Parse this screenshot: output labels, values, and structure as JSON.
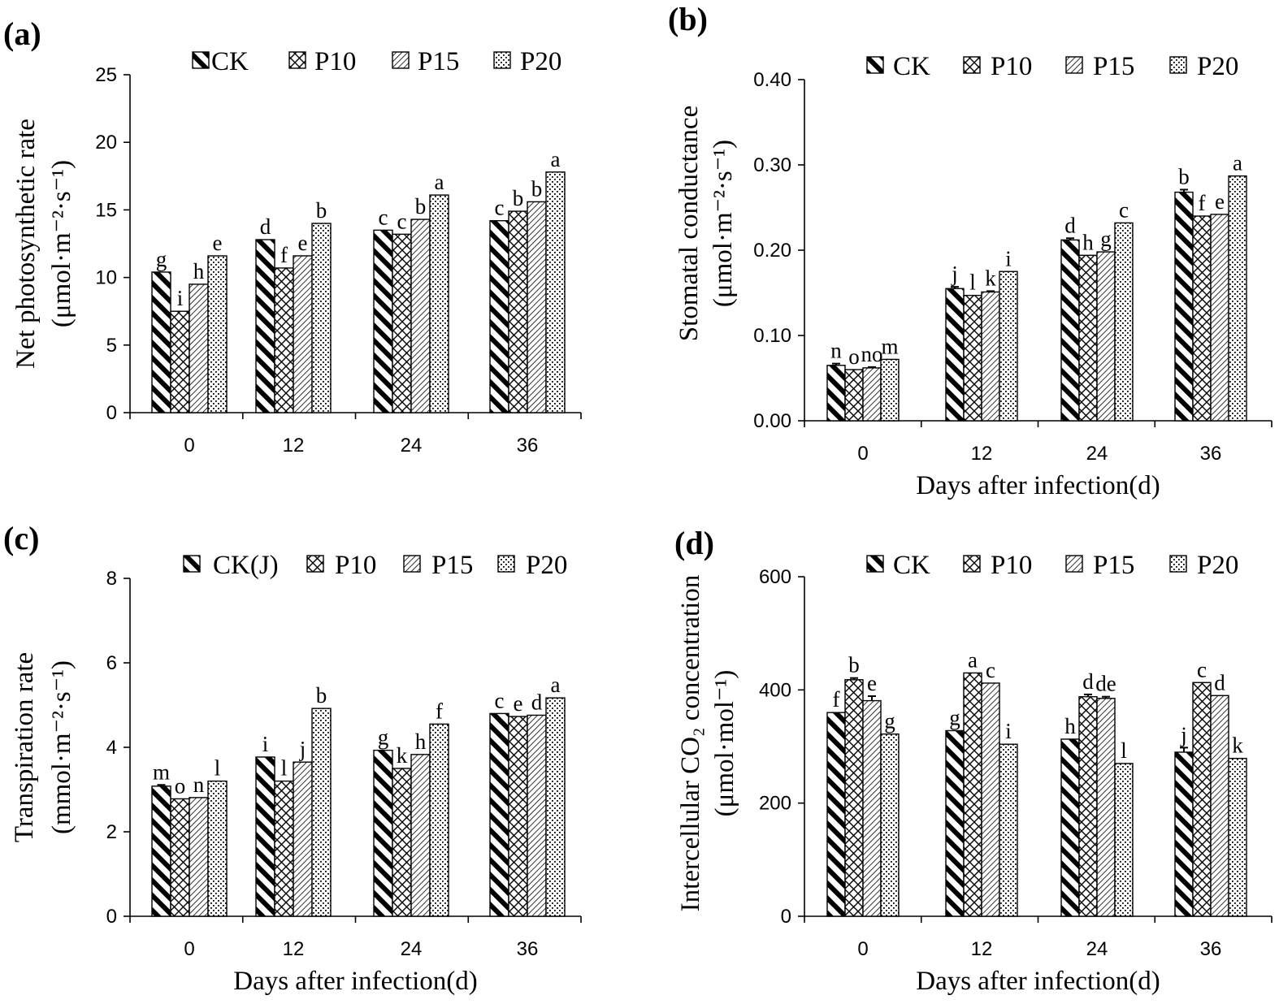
{
  "figure": {
    "panels": [
      {
        "id": "a",
        "label": "(a)"
      },
      {
        "id": "b",
        "label": "(b)"
      },
      {
        "id": "c",
        "label": "(c)"
      },
      {
        "id": "d",
        "label": "(d)"
      }
    ]
  },
  "colors": {
    "ink": "#000000",
    "background": "#ffffff",
    "bar_fill": "#ffffff"
  },
  "chart_data": [
    {
      "id": "a",
      "type": "bar",
      "title": "",
      "panel_label": "(a)",
      "categories": [
        "0",
        "12",
        "24",
        "36"
      ],
      "ylabel_line1": "Net photosynthetic rate",
      "ylabel_line2": "(μmol·m⁻²·s⁻¹)",
      "xlabel": "",
      "ylim": [
        0,
        25
      ],
      "yticks": [
        0,
        5,
        10,
        15,
        20,
        25
      ],
      "ytick_labels": [
        "0",
        "5",
        "10",
        "15",
        "20",
        "25"
      ],
      "legend": [
        "CK",
        "P10",
        "P15",
        "P20"
      ],
      "legend_position": "top",
      "grid": false,
      "series": [
        {
          "name": "CK",
          "pattern": "ck",
          "values": [
            10.4,
            12.8,
            13.5,
            14.2
          ],
          "errors": [
            0,
            0,
            0,
            0
          ],
          "letters": [
            "g",
            "d",
            "c",
            "c"
          ]
        },
        {
          "name": "P10",
          "pattern": "p10",
          "values": [
            7.5,
            10.7,
            13.2,
            14.9
          ],
          "errors": [
            0,
            0,
            0,
            0
          ],
          "letters": [
            "i",
            "f",
            "c",
            "b"
          ]
        },
        {
          "name": "P15",
          "pattern": "p15",
          "values": [
            9.5,
            11.6,
            14.3,
            15.6
          ],
          "errors": [
            0,
            0,
            0,
            0
          ],
          "letters": [
            "h",
            "e",
            "b",
            "b"
          ]
        },
        {
          "name": "P20",
          "pattern": "p20",
          "values": [
            11.6,
            14.0,
            16.1,
            17.8
          ],
          "errors": [
            0,
            0,
            0,
            0
          ],
          "letters": [
            "e",
            "b",
            "a",
            "a"
          ]
        }
      ]
    },
    {
      "id": "b",
      "type": "bar",
      "title": "",
      "panel_label": "(b)",
      "categories": [
        "0",
        "12",
        "24",
        "36"
      ],
      "ylabel_line1": "Stomatal conductance",
      "ylabel_line2": "(μmol·m⁻²·s⁻¹)",
      "xlabel": "Days after infection(d)",
      "ylim": [
        0,
        0.4
      ],
      "yticks": [
        0,
        0.1,
        0.2,
        0.3,
        0.4
      ],
      "ytick_labels": [
        "0.00",
        "0.10",
        "0.20",
        "0.30",
        "0.40"
      ],
      "legend": [
        "CK",
        "P10",
        "P15",
        "P20"
      ],
      "legend_position": "top",
      "grid": false,
      "series": [
        {
          "name": "CK",
          "pattern": "ck",
          "values": [
            0.065,
            0.155,
            0.212,
            0.268
          ],
          "errors": [
            0.002,
            0.002,
            0.002,
            0.003
          ],
          "letters": [
            "n",
            "j",
            "d",
            "b"
          ]
        },
        {
          "name": "P10",
          "pattern": "p10",
          "values": [
            0.06,
            0.147,
            0.194,
            0.24
          ],
          "errors": [
            0,
            0,
            0,
            0
          ],
          "letters": [
            "o",
            "l",
            "h",
            "f"
          ]
        },
        {
          "name": "P15",
          "pattern": "p15",
          "values": [
            0.062,
            0.151,
            0.198,
            0.242
          ],
          "errors": [
            0.001,
            0.001,
            0,
            0
          ],
          "letters": [
            "no",
            "k",
            "g",
            "e"
          ]
        },
        {
          "name": "P20",
          "pattern": "p20",
          "values": [
            0.072,
            0.175,
            0.232,
            0.287
          ],
          "errors": [
            0,
            0,
            0,
            0
          ],
          "letters": [
            "m",
            "i",
            "c",
            "a"
          ]
        }
      ]
    },
    {
      "id": "c",
      "type": "bar",
      "title": "",
      "panel_label": "(c)",
      "categories": [
        "0",
        "12",
        "24",
        "36"
      ],
      "ylabel_line1": "Transpiration rate",
      "ylabel_line2": "(mmol·m⁻²·s⁻¹)",
      "xlabel": "Days after infection(d)",
      "ylim": [
        0,
        8
      ],
      "yticks": [
        0,
        2,
        4,
        6,
        8
      ],
      "ytick_labels": [
        "0",
        "2",
        "4",
        "6",
        "8"
      ],
      "legend": [
        "CK(J)",
        "P10",
        "P15",
        "P20"
      ],
      "legend_position": "top",
      "grid": false,
      "series": [
        {
          "name": "CK(J)",
          "pattern": "ck",
          "values": [
            3.08,
            3.77,
            3.93,
            4.8
          ],
          "errors": [
            0.03,
            0,
            0,
            0
          ],
          "letters": [
            "m",
            "i",
            "g",
            "c"
          ]
        },
        {
          "name": "P10",
          "pattern": "p10",
          "values": [
            2.78,
            3.2,
            3.5,
            4.73
          ],
          "errors": [
            0,
            0,
            0,
            0
          ],
          "letters": [
            "o",
            "l",
            "k",
            "e"
          ]
        },
        {
          "name": "P15",
          "pattern": "p15",
          "values": [
            2.81,
            3.65,
            3.83,
            4.76
          ],
          "errors": [
            0,
            0,
            0,
            0
          ],
          "letters": [
            "n",
            "j",
            "h",
            "d"
          ]
        },
        {
          "name": "P20",
          "pattern": "p20",
          "values": [
            3.2,
            4.92,
            4.55,
            5.17
          ],
          "errors": [
            0,
            0,
            0,
            0
          ],
          "letters": [
            "l",
            "b",
            "f",
            "a"
          ]
        }
      ]
    },
    {
      "id": "d",
      "type": "bar",
      "title": "",
      "panel_label": "(d)",
      "categories": [
        "0",
        "12",
        "24",
        "36"
      ],
      "ylabel_line1": "Intercellular CO₂ concentration",
      "ylabel_line2": "(μmol·mol⁻¹)",
      "xlabel": "Days after infection(d)",
      "ylim": [
        0,
        600
      ],
      "yticks": [
        0,
        200,
        400,
        600
      ],
      "ytick_labels": [
        "0",
        "200",
        "400",
        "600"
      ],
      "legend": [
        "CK",
        "P10",
        "P15",
        "P20"
      ],
      "legend_position": "top",
      "grid": false,
      "series": [
        {
          "name": "CK",
          "pattern": "ck",
          "values": [
            360,
            328,
            313,
            290
          ],
          "errors": [
            0,
            0,
            0,
            8
          ],
          "letters": [
            "f",
            "g",
            "h",
            "j"
          ]
        },
        {
          "name": "P10",
          "pattern": "p10",
          "values": [
            418,
            430,
            388,
            413
          ],
          "errors": [
            3,
            0,
            4,
            0
          ],
          "letters": [
            "b",
            "a",
            "d",
            "c"
          ]
        },
        {
          "name": "P15",
          "pattern": "p15",
          "values": [
            381,
            412,
            385,
            390
          ],
          "errors": [
            8,
            0,
            3,
            0
          ],
          "letters": [
            "e",
            "c",
            "de",
            "d"
          ]
        },
        {
          "name": "P20",
          "pattern": "p20",
          "values": [
            322,
            304,
            270,
            279
          ],
          "errors": [
            0,
            0,
            0,
            0
          ],
          "letters": [
            "g",
            "i",
            "l",
            "k"
          ]
        }
      ]
    }
  ]
}
